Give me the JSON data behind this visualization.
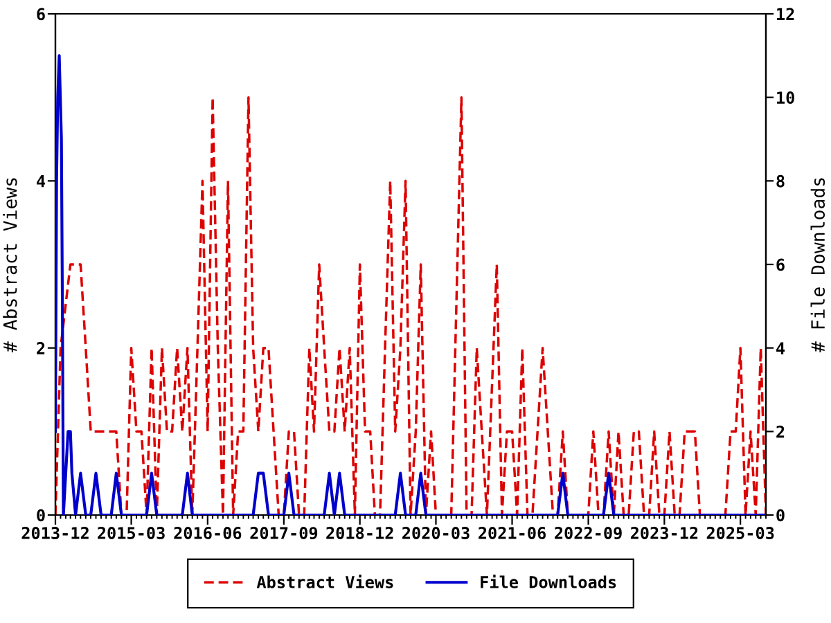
{
  "chart_data": {
    "type": "line",
    "ylabel": "# Abstract Views",
    "y2label": "# File Downloads",
    "xlim": [
      "2013-12",
      "2025-08"
    ],
    "xticks": [
      "2013-12",
      "2015-03",
      "2016-06",
      "2017-09",
      "2018-12",
      "2020-03",
      "2021-06",
      "2022-09",
      "2023-12",
      "2025-03"
    ],
    "ylim": [
      0,
      6
    ],
    "yticks": [
      0,
      2,
      4,
      6
    ],
    "y2lim": [
      0,
      12
    ],
    "y2ticks": [
      0,
      2,
      4,
      6,
      8,
      10,
      12
    ],
    "legend": "bottom",
    "series": [
      {
        "name": "Abstract Views",
        "color": "#dd0000",
        "line_style": "dashed",
        "x": [
          "2013-12",
          "2014-01",
          "2014-03",
          "2014-05",
          "2014-06",
          "2014-07",
          "2014-12",
          "2015-01",
          "2015-02",
          "2015-03",
          "2015-04",
          "2015-05",
          "2015-06",
          "2015-07",
          "2015-08",
          "2015-09",
          "2015-10",
          "2015-11",
          "2015-12",
          "2016-01",
          "2016-02",
          "2016-03",
          "2016-04",
          "2016-05",
          "2016-06",
          "2016-07",
          "2016-08",
          "2016-09",
          "2016-10",
          "2016-11",
          "2016-12",
          "2017-01",
          "2017-02",
          "2017-03",
          "2017-04",
          "2017-05",
          "2017-06",
          "2017-08",
          "2017-09",
          "2017-10",
          "2017-11",
          "2017-12",
          "2018-01",
          "2018-02",
          "2018-03",
          "2018-04",
          "2018-05",
          "2018-06",
          "2018-07",
          "2018-08",
          "2018-09",
          "2018-10",
          "2018-11",
          "2018-12",
          "2019-01",
          "2019-02",
          "2019-03",
          "2019-04",
          "2019-05",
          "2019-06",
          "2019-07",
          "2019-08",
          "2019-09",
          "2019-10",
          "2019-11",
          "2019-12",
          "2020-01",
          "2020-02",
          "2020-03",
          "2020-06",
          "2020-08",
          "2020-09",
          "2020-10",
          "2020-11",
          "2020-12",
          "2021-01",
          "2021-03",
          "2021-04",
          "2021-05",
          "2021-06",
          "2021-07",
          "2021-08",
          "2021-09",
          "2021-10",
          "2021-12",
          "2022-01",
          "2022-02",
          "2022-03",
          "2022-04",
          "2022-05",
          "2022-09",
          "2022-10",
          "2022-11",
          "2022-12",
          "2023-01",
          "2023-02",
          "2023-03",
          "2023-04",
          "2023-05",
          "2023-06",
          "2023-07",
          "2023-08",
          "2023-09",
          "2023-10",
          "2023-11",
          "2023-12",
          "2024-01",
          "2024-02",
          "2024-03",
          "2024-04",
          "2024-06",
          "2024-07",
          "2024-12",
          "2025-01",
          "2025-02",
          "2025-03",
          "2025-04",
          "2025-05",
          "2025-06",
          "2025-07",
          "2025-08"
        ],
        "values": [
          0,
          2,
          3,
          3,
          2,
          1,
          1,
          0,
          0,
          2,
          1,
          1,
          0,
          2,
          0,
          2,
          1,
          1,
          2,
          1,
          2,
          0,
          2,
          4,
          1,
          5,
          2,
          0,
          4,
          0,
          1,
          1,
          5,
          2,
          1,
          2,
          2,
          0,
          0,
          1,
          1,
          0,
          0,
          2,
          1,
          3,
          2,
          1,
          1,
          2,
          1,
          2,
          0,
          3,
          1,
          1,
          0,
          0,
          2,
          4,
          1,
          2,
          4,
          0,
          1,
          3,
          0,
          1,
          0,
          0,
          5,
          0,
          0,
          2,
          1,
          0,
          3,
          0,
          1,
          1,
          0,
          2,
          0,
          0,
          2,
          1,
          0,
          0,
          1,
          0,
          0,
          1,
          0,
          0,
          1,
          0,
          1,
          0,
          0,
          1,
          1,
          0,
          0,
          1,
          0,
          0,
          1,
          0,
          0,
          1,
          1,
          0,
          0,
          1,
          1,
          2,
          0,
          1,
          0,
          2,
          0
        ]
      },
      {
        "name": "File Downloads",
        "color": "#0000cc",
        "line_style": "solid",
        "axis": "y2",
        "x": [
          "2013-12-01",
          "2013-12-08",
          "2013-12-15",
          "2013-12-24",
          "2014-01-06",
          "2014-01-12",
          "2014-01-18",
          "2014-02-01",
          "2014-02-15",
          "2014-03-01",
          "2014-03-10",
          "2014-04-01",
          "2014-05-01",
          "2014-06-01",
          "2014-07-01",
          "2014-08-01",
          "2014-09-01",
          "2014-11-01",
          "2014-12-01",
          "2015-01-01",
          "2015-06-01",
          "2015-07-01",
          "2015-08-01",
          "2016-01-01",
          "2016-02-01",
          "2016-03-01",
          "2017-03-01",
          "2017-04-01",
          "2017-05-01",
          "2017-06-01",
          "2017-09-01",
          "2017-10-01",
          "2017-11-01",
          "2018-05-01",
          "2018-06-01",
          "2018-07-01",
          "2018-08-01",
          "2018-09-01",
          "2019-07-01",
          "2019-08-01",
          "2019-09-01",
          "2019-11-01",
          "2019-12-01",
          "2020-01-01",
          "2022-03-01",
          "2022-04-01",
          "2022-05-01",
          "2022-12-01",
          "2023-01-01",
          "2023-02-01",
          "2025-08-01"
        ],
        "values": [
          2,
          8,
          10,
          11,
          9,
          5,
          0,
          1,
          2,
          2,
          1,
          0,
          1,
          0,
          0,
          1,
          0,
          0,
          1,
          0,
          0,
          1,
          0,
          0,
          1,
          0,
          0,
          1,
          1,
          0,
          0,
          1,
          0,
          0,
          1,
          0,
          1,
          0,
          0,
          1,
          0,
          0,
          1,
          0,
          0,
          1,
          0,
          0,
          1,
          0,
          0
        ]
      }
    ]
  }
}
